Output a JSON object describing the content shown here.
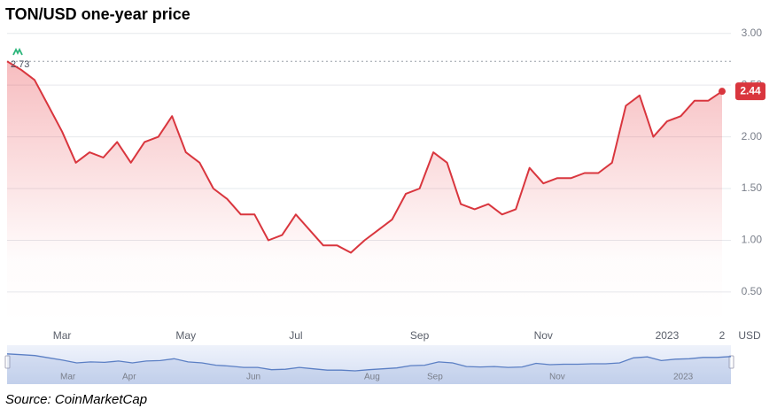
{
  "chart_data": {
    "type": "line",
    "title": "TON/USD one-year price",
    "source": "Source: CoinMarketCap",
    "y_unit": "USD",
    "color": "#d9363e",
    "categories": [
      null,
      null,
      null,
      null,
      "Mar",
      null,
      null,
      null,
      null,
      null,
      null,
      null,
      null,
      "May",
      null,
      null,
      null,
      null,
      null,
      null,
      null,
      "Jul",
      null,
      null,
      null,
      null,
      null,
      null,
      null,
      null,
      "Sep",
      null,
      null,
      null,
      null,
      null,
      null,
      null,
      null,
      "Nov",
      null,
      null,
      null,
      null,
      null,
      null,
      null,
      null,
      "2023",
      null,
      null,
      null,
      "2"
    ],
    "values": [
      2.73,
      2.65,
      2.55,
      2.3,
      2.05,
      1.75,
      1.85,
      1.8,
      1.95,
      1.75,
      1.95,
      2.0,
      2.2,
      1.85,
      1.75,
      1.5,
      1.4,
      1.25,
      1.25,
      1.0,
      1.05,
      1.25,
      1.1,
      0.95,
      0.95,
      0.88,
      1.0,
      1.1,
      1.2,
      1.45,
      1.5,
      1.85,
      1.75,
      1.35,
      1.3,
      1.35,
      1.25,
      1.3,
      1.7,
      1.55,
      1.6,
      1.6,
      1.65,
      1.65,
      1.75,
      2.3,
      2.4,
      2.0,
      2.15,
      2.2,
      2.35,
      2.35,
      2.44
    ],
    "ylim": [
      0.2,
      3.1
    ],
    "yticks": [
      {
        "value": 3,
        "label": "3.00"
      },
      {
        "value": 2.5,
        "label": "2.50"
      },
      {
        "value": 2,
        "label": "2.00"
      },
      {
        "value": 1.5,
        "label": "1.50"
      },
      {
        "value": 1,
        "label": "1.00"
      },
      {
        "value": 0.5,
        "label": "0.50"
      }
    ],
    "grid": true,
    "navigator_labels": [
      "Mar",
      "Apr",
      "Jun",
      "Aug",
      "Sep",
      "Nov",
      "2023"
    ],
    "navigator_color": "#5b7fc4"
  }
}
